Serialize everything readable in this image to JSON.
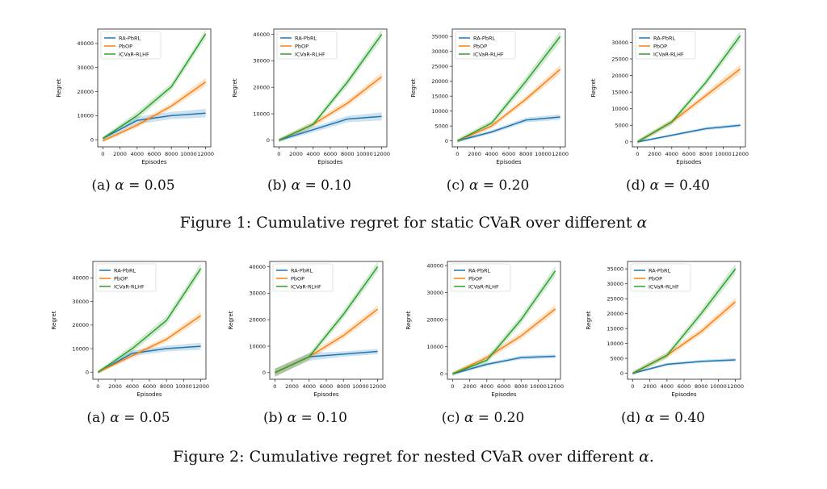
{
  "colors": {
    "RA-PbRL": "#1f77b4",
    "PbOP": "#ff7f0e",
    "ICVaR-RLHF": "#2ca02c"
  },
  "figures": [
    {
      "caption_prefix": "Figure 1: Cumulative regret for static CVaR over different ",
      "caption_symbol": "α",
      "caption_suffix": ""
    },
    {
      "caption_prefix": "Figure 2: Cumulative regret for nested CVaR over different ",
      "caption_symbol": "α",
      "caption_suffix": "."
    }
  ],
  "chart_data": [
    {
      "type": "line",
      "figure": 1,
      "subcaption": "(a)",
      "alpha_symbol": "α",
      "alpha_value": "= 0.05",
      "xlabel": "Episodes",
      "ylabel": "Regret",
      "x": [
        0,
        4000,
        8000,
        12000
      ],
      "xticks": [
        0,
        2000,
        4000,
        6000,
        8000,
        10000,
        12000
      ],
      "xtick_labels": [
        "0",
        "2000",
        "4000",
        "6000",
        "8000",
        "10000",
        "12000"
      ],
      "ylim": [
        -3000,
        46000
      ],
      "yticks": [
        0,
        10000,
        20000,
        30000,
        40000
      ],
      "ytick_labels": [
        "0",
        "10000",
        "20000",
        "30000",
        "40000"
      ],
      "legend": "top-left",
      "grid": false,
      "series": [
        {
          "name": "RA-PbRL",
          "values": [
            500,
            8000,
            10000,
            11000
          ],
          "band": [
            600,
            1500,
            1500,
            1800
          ]
        },
        {
          "name": "PbOP",
          "values": [
            -500,
            6000,
            14000,
            24000
          ],
          "band": [
            600,
            1000,
            1200,
            1800
          ]
        },
        {
          "name": "ICVaR-RLHF",
          "values": [
            500,
            10000,
            22000,
            44000
          ],
          "band": [
            800,
            1500,
            1500,
            1800
          ]
        }
      ]
    },
    {
      "type": "line",
      "figure": 1,
      "subcaption": "(b)",
      "alpha_symbol": "α",
      "alpha_value": "= 0.10",
      "xlabel": "Episodes",
      "ylabel": "Regret",
      "x": [
        0,
        4000,
        8000,
        12000
      ],
      "xticks": [
        0,
        2000,
        4000,
        6000,
        8000,
        10000,
        12000
      ],
      "xtick_labels": [
        "0",
        "2000",
        "4000",
        "6000",
        "8000",
        "10000",
        "12000"
      ],
      "ylim": [
        -2500,
        42000
      ],
      "yticks": [
        0,
        10000,
        20000,
        30000,
        40000
      ],
      "ytick_labels": [
        "0",
        "10000",
        "20000",
        "30000",
        "40000"
      ],
      "legend": "top-left",
      "grid": false,
      "series": [
        {
          "name": "RA-PbRL",
          "values": [
            0,
            4000,
            8000,
            9000
          ],
          "band": [
            600,
            1000,
            1200,
            1500
          ]
        },
        {
          "name": "PbOP",
          "values": [
            0,
            6000,
            14000,
            24000
          ],
          "band": [
            600,
            1000,
            1200,
            1500
          ]
        },
        {
          "name": "ICVaR-RLHF",
          "values": [
            0,
            6000,
            22000,
            40000
          ],
          "band": [
            800,
            1000,
            1500,
            1800
          ]
        }
      ]
    },
    {
      "type": "line",
      "figure": 1,
      "subcaption": "(c)",
      "alpha_symbol": "α",
      "alpha_value": "= 0.20",
      "xlabel": "Episodes",
      "ylabel": "Regret",
      "x": [
        0,
        4000,
        8000,
        12000
      ],
      "xticks": [
        0,
        2000,
        4000,
        6000,
        8000,
        10000,
        12000
      ],
      "xtick_labels": [
        "0",
        "2000",
        "4000",
        "6000",
        "8000",
        "10000",
        "12000"
      ],
      "ylim": [
        -2000,
        37500
      ],
      "yticks": [
        0,
        5000,
        10000,
        15000,
        20000,
        25000,
        30000,
        35000
      ],
      "ytick_labels": [
        "0",
        "5000",
        "10000",
        "15000",
        "20000",
        "25000",
        "30000",
        "35000"
      ],
      "legend": "top-left",
      "grid": false,
      "series": [
        {
          "name": "RA-PbRL",
          "values": [
            0,
            3000,
            7000,
            8000
          ],
          "band": [
            500,
            600,
            800,
            900
          ]
        },
        {
          "name": "PbOP",
          "values": [
            0,
            5000,
            14000,
            24000
          ],
          "band": [
            500,
            800,
            1000,
            1400
          ]
        },
        {
          "name": "ICVaR-RLHF",
          "values": [
            0,
            6000,
            20000,
            35000
          ],
          "band": [
            700,
            1000,
            1500,
            1800
          ]
        }
      ]
    },
    {
      "type": "line",
      "figure": 1,
      "subcaption": "(d)",
      "alpha_symbol": "α",
      "alpha_value": "= 0.40",
      "xlabel": "Episodes",
      "ylabel": "Regret",
      "x": [
        0,
        4000,
        8000,
        12000
      ],
      "xticks": [
        0,
        2000,
        4000,
        6000,
        8000,
        10000,
        12000
      ],
      "xtick_labels": [
        "0",
        "2000",
        "4000",
        "6000",
        "8000",
        "10000",
        "12000"
      ],
      "ylim": [
        -1500,
        34000
      ],
      "yticks": [
        0,
        5000,
        10000,
        15000,
        20000,
        25000,
        30000
      ],
      "ytick_labels": [
        "0",
        "5000",
        "10000",
        "15000",
        "20000",
        "25000",
        "30000"
      ],
      "legend": "top-left",
      "grid": false,
      "series": [
        {
          "name": "RA-PbRL",
          "values": [
            0,
            2000,
            4000,
            5000
          ],
          "band": [
            300,
            400,
            500,
            500
          ]
        },
        {
          "name": "PbOP",
          "values": [
            0,
            6000,
            14000,
            22000
          ],
          "band": [
            600,
            800,
            1000,
            1400
          ]
        },
        {
          "name": "ICVaR-RLHF",
          "values": [
            0,
            6000,
            18000,
            32000
          ],
          "band": [
            600,
            800,
            1000,
            1500
          ]
        }
      ]
    },
    {
      "type": "line",
      "figure": 2,
      "subcaption": "(a)",
      "alpha_symbol": "α",
      "alpha_value": "= 0.05",
      "xlabel": "Episodes",
      "ylabel": "Regret",
      "x": [
        0,
        4000,
        8000,
        12000
      ],
      "xticks": [
        0,
        2000,
        4000,
        6000,
        8000,
        10000,
        12000
      ],
      "xtick_labels": [
        "0",
        "2000",
        "4000",
        "6000",
        "8000",
        "10000",
        "12000"
      ],
      "ylim": [
        -3000,
        47000
      ],
      "yticks": [
        0,
        10000,
        20000,
        30000,
        40000
      ],
      "ytick_labels": [
        "0",
        "10000",
        "20000",
        "30000",
        "40000"
      ],
      "legend": "top-left",
      "grid": false,
      "series": [
        {
          "name": "RA-PbRL",
          "values": [
            0,
            8000,
            10000,
            11000
          ],
          "band": [
            600,
            1200,
            1200,
            1500
          ]
        },
        {
          "name": "PbOP",
          "values": [
            0,
            7000,
            14000,
            24000
          ],
          "band": [
            600,
            1000,
            1200,
            1600
          ]
        },
        {
          "name": "ICVaR-RLHF",
          "values": [
            0,
            10000,
            22000,
            44000
          ],
          "band": [
            800,
            1500,
            1800,
            2000
          ]
        }
      ]
    },
    {
      "type": "line",
      "figure": 2,
      "subcaption": "(b)",
      "alpha_symbol": "α",
      "alpha_value": "= 0.10",
      "xlabel": "Episodes",
      "ylabel": "Regret",
      "x": [
        0,
        4000,
        8000,
        12000
      ],
      "xticks": [
        0,
        2000,
        4000,
        6000,
        8000,
        10000,
        12000
      ],
      "xtick_labels": [
        "0",
        "2000",
        "4000",
        "6000",
        "8000",
        "10000",
        "12000"
      ],
      "ylim": [
        -2500,
        42000
      ],
      "yticks": [
        0,
        10000,
        20000,
        30000,
        40000
      ],
      "ytick_labels": [
        "0",
        "10000",
        "20000",
        "30000",
        "40000"
      ],
      "legend": "top-left",
      "grid": false,
      "series": [
        {
          "name": "RA-PbRL",
          "values": [
            0,
            6000,
            7000,
            8000
          ],
          "band": [
            1500,
            1500,
            1000,
            1000
          ]
        },
        {
          "name": "PbOP",
          "values": [
            0,
            6000,
            14000,
            24000
          ],
          "band": [
            1500,
            1200,
            1200,
            1500
          ]
        },
        {
          "name": "ICVaR-RLHF",
          "values": [
            0,
            6000,
            22000,
            40000
          ],
          "band": [
            1500,
            1200,
            1500,
            1800
          ]
        }
      ]
    },
    {
      "type": "line",
      "figure": 2,
      "subcaption": "(c)",
      "alpha_symbol": "α",
      "alpha_value": "= 0.20",
      "xlabel": "Episodes",
      "ylabel": "Regret",
      "x": [
        0,
        4000,
        8000,
        12000
      ],
      "xticks": [
        0,
        2000,
        4000,
        6000,
        8000,
        10000,
        12000
      ],
      "xtick_labels": [
        "0",
        "2000",
        "4000",
        "6000",
        "8000",
        "10000",
        "12000"
      ],
      "ylim": [
        -2000,
        41500
      ],
      "yticks": [
        0,
        10000,
        20000,
        30000,
        40000
      ],
      "ytick_labels": [
        "0",
        "10000",
        "20000",
        "30000",
        "40000"
      ],
      "legend": "top-left",
      "grid": false,
      "series": [
        {
          "name": "RA-PbRL",
          "values": [
            0,
            3500,
            6000,
            6500
          ],
          "band": [
            500,
            600,
            700,
            700
          ]
        },
        {
          "name": "PbOP",
          "values": [
            0,
            6000,
            14000,
            24000
          ],
          "band": [
            600,
            1000,
            1200,
            1400
          ]
        },
        {
          "name": "ICVaR-RLHF",
          "values": [
            0,
            5000,
            20000,
            38000
          ],
          "band": [
            800,
            1200,
            1500,
            1800
          ]
        }
      ]
    },
    {
      "type": "line",
      "figure": 2,
      "subcaption": "(d)",
      "alpha_symbol": "α",
      "alpha_value": "= 0.40",
      "xlabel": "Episodes",
      "ylabel": "Regret",
      "x": [
        0,
        4000,
        8000,
        12000
      ],
      "xticks": [
        0,
        2000,
        4000,
        6000,
        8000,
        10000,
        12000
      ],
      "xtick_labels": [
        "0",
        "2000",
        "4000",
        "6000",
        "8000",
        "10000",
        "12000"
      ],
      "ylim": [
        -2000,
        37500
      ],
      "yticks": [
        0,
        5000,
        10000,
        15000,
        20000,
        25000,
        30000,
        35000
      ],
      "ytick_labels": [
        "0",
        "5000",
        "10000",
        "15000",
        "20000",
        "25000",
        "30000",
        "35000"
      ],
      "legend": "top-left",
      "grid": false,
      "series": [
        {
          "name": "RA-PbRL",
          "values": [
            0,
            3000,
            4000,
            4500
          ],
          "band": [
            400,
            500,
            500,
            600
          ]
        },
        {
          "name": "PbOP",
          "values": [
            0,
            6000,
            14000,
            24000
          ],
          "band": [
            600,
            900,
            1100,
            1400
          ]
        },
        {
          "name": "ICVaR-RLHF",
          "values": [
            0,
            6000,
            20000,
            35000
          ],
          "band": [
            700,
            1000,
            1400,
            1700
          ]
        }
      ]
    }
  ]
}
